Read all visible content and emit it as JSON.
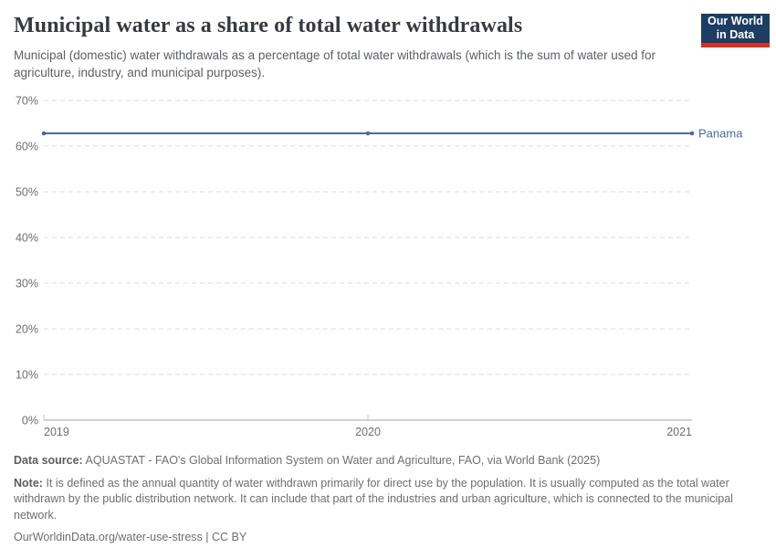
{
  "header": {
    "title": "Municipal water as a share of total water withdrawals",
    "subtitle": "Municipal (domestic) water withdrawals as a percentage of total water withdrawals (which is the sum of water used for agriculture, industry, and municipal purposes).",
    "logo": {
      "line1": "Our World",
      "line2": "in Data",
      "bg_color": "#1d3d63",
      "stripe_color": "#d93025"
    }
  },
  "chart_data": {
    "type": "line",
    "title": "Municipal water as a share of total water withdrawals",
    "x": [
      2019,
      2020,
      2021
    ],
    "xticks": [
      "2019",
      "2020",
      "2021"
    ],
    "series": [
      {
        "name": "Panama",
        "values": [
          62.8,
          62.8,
          62.8
        ],
        "color": "#4c6a9c"
      }
    ],
    "ylim": [
      0,
      70
    ],
    "ytick_step": 10,
    "ytick_suffix": "%",
    "grid": "horizontal-dashed",
    "legend_position": "right-of-line-end",
    "colors": {
      "gridline": "#dcdcdc",
      "axis_line": "#a3a3a3",
      "tick_label": "#6f6f6f"
    }
  },
  "footer": {
    "data_source_label": "Data source:",
    "data_source_text": "AQUASTAT - FAO's Global Information System on Water and Agriculture, FAO, via World Bank (2025)",
    "note_label": "Note:",
    "note_text": "It is defined as the annual quantity of water withdrawn primarily for direct use by the population. It is usually computed as the total water withdrawn by the public distribution network. It can include that part of the industries and urban agriculture, which is connected to the municipal network.",
    "url_text": "OurWorldinData.org/water-use-stress | CC BY"
  }
}
